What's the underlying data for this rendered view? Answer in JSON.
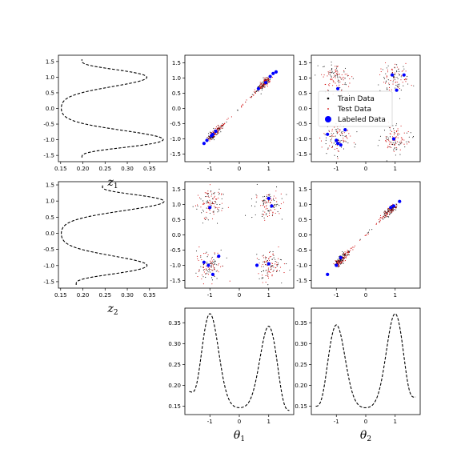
{
  "chart_data": {
    "type": "scatter",
    "layout": "pairplot-3x3",
    "legend": {
      "placement": "center-left",
      "entries": [
        {
          "label": "Train Data",
          "color": "#000000",
          "marker": "dot-small"
        },
        {
          "label": "Test Data",
          "color": "#d00000",
          "marker": "dot-tiny"
        },
        {
          "label": "Labeled Data",
          "color": "#0000ff",
          "marker": "dot-large"
        }
      ]
    },
    "axis_labels": {
      "z1": {
        "symbol": "z",
        "sub": "1"
      },
      "z2": {
        "symbol": "z",
        "sub": "2"
      },
      "theta1": {
        "symbol": "θ",
        "sub": "1"
      },
      "theta2": {
        "symbol": "θ",
        "sub": "2"
      }
    },
    "panels": [
      {
        "id": "r0c0",
        "type": "line",
        "orientation": "horizontal-density",
        "xlim": [
          0.145,
          0.39
        ],
        "ylim": [
          -1.7,
          1.7
        ],
        "xticks": [
          "0.15",
          "0.20",
          "0.25",
          "0.30",
          "0.35"
        ],
        "yticks": [
          "-1.5",
          "-1.0",
          "-0.5",
          "0.0",
          "0.5",
          "1.0",
          "1.5"
        ],
        "density": {
          "y_range": [
            -1.57,
            1.57
          ],
          "peaks": [
            [
              -1.0,
              0.382
            ],
            [
              1.0,
              0.345
            ]
          ],
          "base": 0.15,
          "end_values": [
            0.198,
            0.198
          ]
        },
        "xlabel_key": "z1",
        "grid": false
      },
      {
        "id": "r0c1",
        "type": "scatter",
        "pattern": "diagonal",
        "xlim": [
          -1.85,
          1.85
        ],
        "ylim": [
          -1.75,
          1.75
        ],
        "xticks": [
          "-1",
          "0",
          "1"
        ],
        "yticks": [
          "-1.5",
          "-1.0",
          "-0.5",
          "0.0",
          "0.5",
          "1.0",
          "1.5"
        ],
        "labeled": [
          [
            -0.95,
            -0.9
          ],
          [
            -1.1,
            -1.05
          ],
          [
            -1.2,
            -1.15
          ],
          [
            -0.9,
            -0.85
          ],
          [
            -0.8,
            -0.75
          ],
          [
            0.65,
            0.65
          ],
          [
            0.9,
            0.85
          ],
          [
            1.05,
            1.05
          ],
          [
            1.15,
            1.15
          ],
          [
            1.25,
            1.2
          ]
        ],
        "grid": false
      },
      {
        "id": "r0c2",
        "type": "scatter",
        "pattern": "four-clusters",
        "xlim": [
          -1.85,
          1.85
        ],
        "ylim": [
          -1.75,
          1.75
        ],
        "xticks": [
          "-1",
          "0",
          "1"
        ],
        "yticks": [
          "-1.5",
          "-1.0",
          "-0.5",
          "0.0",
          "0.5",
          "1.0",
          "1.5"
        ],
        "labeled": [
          [
            -0.95,
            0.65
          ],
          [
            0.9,
            1.1
          ],
          [
            1.3,
            1.1
          ],
          [
            1.05,
            0.6
          ],
          [
            -1.3,
            -0.85
          ],
          [
            -1.0,
            -1.05
          ],
          [
            -0.95,
            -1.15
          ],
          [
            -0.85,
            -1.2
          ],
          [
            -0.7,
            -0.7
          ],
          [
            0.95,
            -1.0
          ]
        ],
        "grid": false
      },
      {
        "id": "r1c0",
        "type": "line",
        "orientation": "horizontal-density",
        "xlim": [
          0.145,
          0.39
        ],
        "ylim": [
          -1.7,
          1.6
        ],
        "xticks": [
          "0.15",
          "0.20",
          "0.25",
          "0.30",
          "0.35"
        ],
        "yticks": [
          "-1.5",
          "-1.0",
          "-0.5",
          "0.0",
          "0.5",
          "1.0",
          "1.5"
        ],
        "density": {
          "y_range": [
            -1.6,
            1.5
          ],
          "peaks": [
            [
              -1.0,
              0.345
            ],
            [
              1.0,
              0.385
            ]
          ],
          "base": 0.15,
          "end_values": [
            0.185,
            0.245
          ]
        },
        "xlabel_key": "z2",
        "grid": false
      },
      {
        "id": "r1c1",
        "type": "scatter",
        "pattern": "four-clusters",
        "xlim": [
          -1.85,
          1.85
        ],
        "ylim": [
          -1.75,
          1.75
        ],
        "xticks": [
          "-1",
          "0",
          "1"
        ],
        "yticks": [
          "-1.5",
          "-1.0",
          "-0.5",
          "0.0",
          "0.5",
          "1.0",
          "1.5"
        ],
        "labeled": [
          [
            -1.0,
            0.9
          ],
          [
            1.0,
            1.2
          ],
          [
            1.1,
            0.95
          ],
          [
            -0.7,
            -0.7
          ],
          [
            -1.2,
            -0.9
          ],
          [
            -1.05,
            -1.0
          ],
          [
            -0.9,
            -1.3
          ],
          [
            0.6,
            -1.0
          ],
          [
            1.0,
            -0.95
          ]
        ],
        "grid": false
      },
      {
        "id": "r1c2",
        "type": "scatter",
        "pattern": "diagonal",
        "xlim": [
          -1.85,
          1.85
        ],
        "ylim": [
          -1.75,
          1.75
        ],
        "xticks": [
          "-1",
          "0",
          "1"
        ],
        "yticks": [
          "-1.5",
          "-1.0",
          "-0.5",
          "0.0",
          "0.5",
          "1.0",
          "1.5"
        ],
        "labeled": [
          [
            -1.3,
            -1.3
          ],
          [
            -0.85,
            -0.75
          ],
          [
            -1.0,
            -1.0
          ],
          [
            0.85,
            0.9
          ],
          [
            0.95,
            0.95
          ],
          [
            1.15,
            1.1
          ]
        ],
        "grid": false
      },
      {
        "id": "r2c1",
        "type": "line",
        "xlim": [
          -1.85,
          1.85
        ],
        "ylim": [
          0.13,
          0.385
        ],
        "xticks": [
          "-1",
          "0",
          "1"
        ],
        "yticks": [
          "0.15",
          "0.20",
          "0.25",
          "0.30",
          "0.35"
        ],
        "density": {
          "x_range": [
            -1.7,
            1.7
          ],
          "peaks": [
            [
              -1.0,
              0.372
            ],
            [
              1.0,
              0.342
            ]
          ],
          "base": 0.145,
          "end_values": [
            0.185,
            0.14
          ]
        },
        "xlabel_key": "theta1",
        "grid": false
      },
      {
        "id": "r2c2",
        "type": "line",
        "xlim": [
          -1.85,
          1.85
        ],
        "ylim": [
          0.13,
          0.385
        ],
        "xticks": [
          "-1",
          "0",
          "1"
        ],
        "yticks": [
          "0.15",
          "0.20",
          "0.25",
          "0.30",
          "0.35"
        ],
        "density": {
          "x_range": [
            -1.7,
            1.7
          ],
          "peaks": [
            [
              -1.0,
              0.345
            ],
            [
              1.0,
              0.372
            ]
          ],
          "base": 0.145,
          "end_values": [
            0.15,
            0.172
          ]
        },
        "xlabel_key": "theta2",
        "grid": false
      }
    ]
  }
}
